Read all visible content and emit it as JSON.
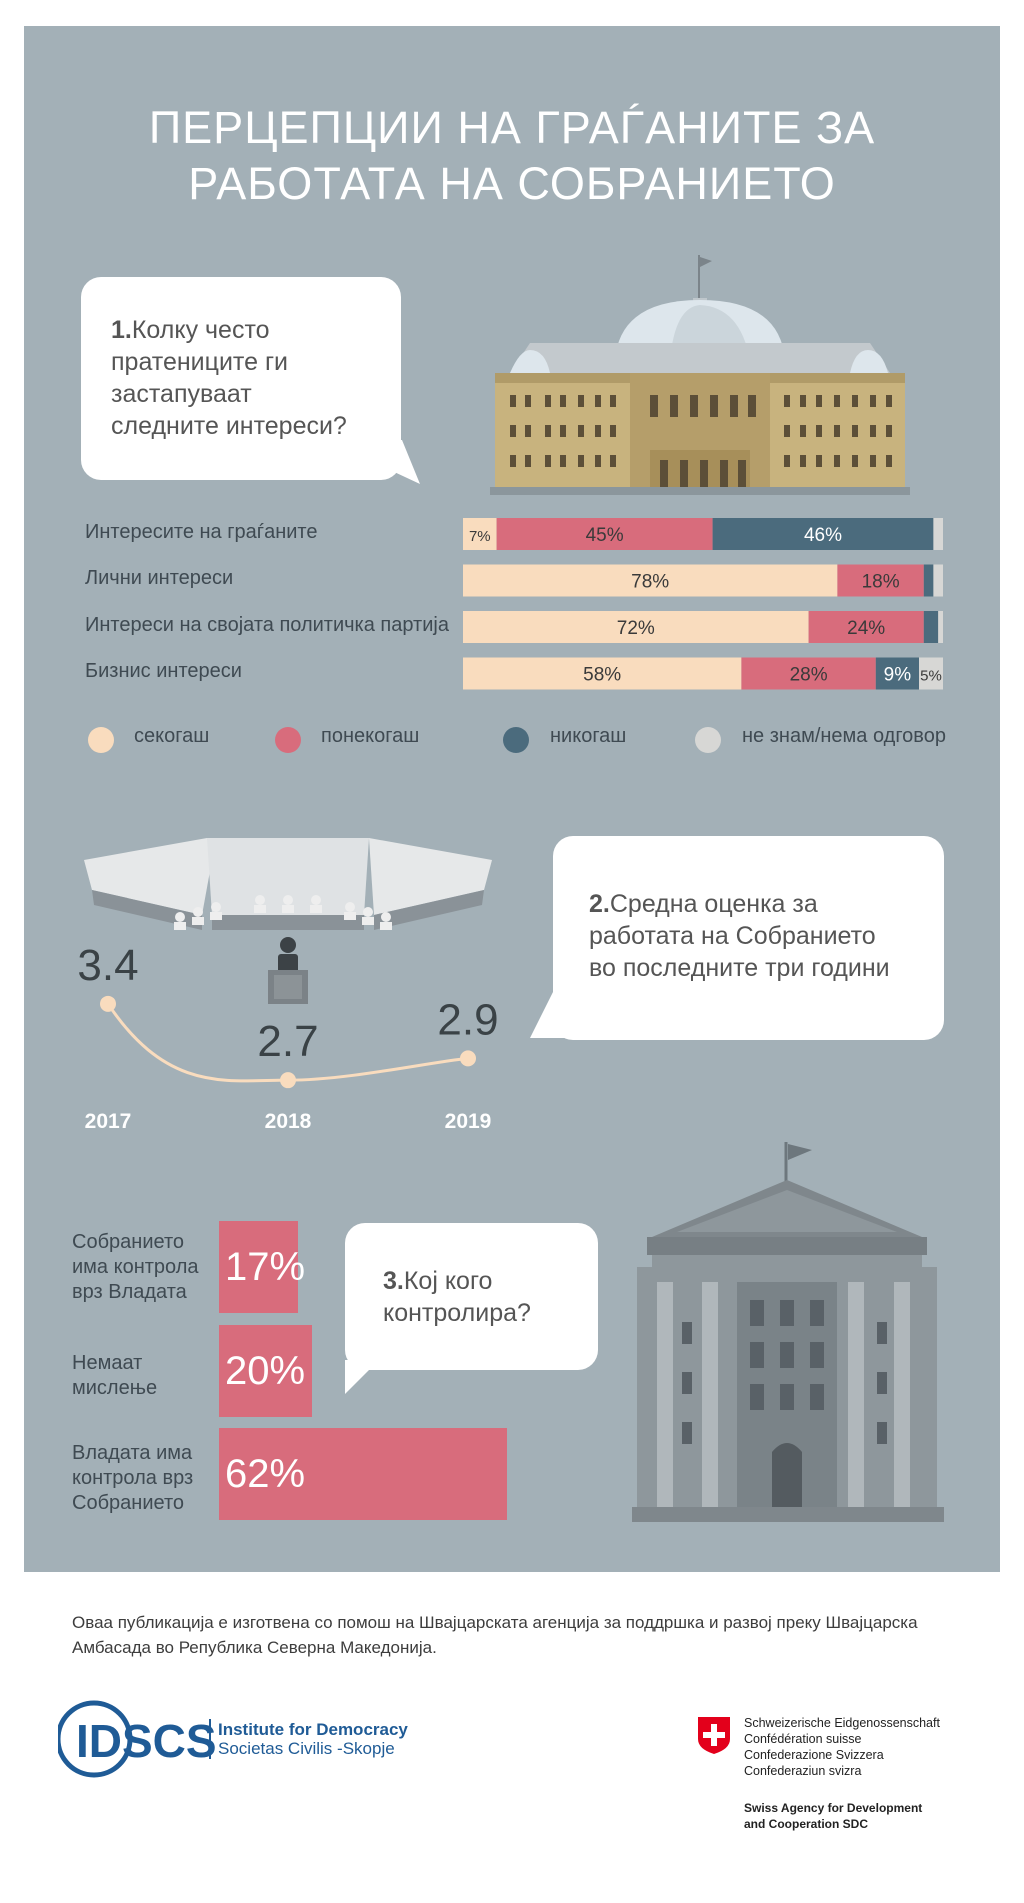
{
  "title_lines": [
    "ПЕРЦЕПЦИИ НА ГРАЃАНИТЕ ЗА",
    "РАБОТАТА НА СОБРАНИЕТО"
  ],
  "q1": {
    "number": "1.",
    "lines": [
      "Колку често",
      "пратениците ги",
      "застапуваат",
      "следните интереси?"
    ]
  },
  "q2": {
    "number": "2.",
    "lines": [
      "Средна оценка за",
      "работата на Собранието",
      "во последните три години"
    ]
  },
  "q3": {
    "number": "3.",
    "lines": [
      "Кој кого",
      "контролира?"
    ]
  },
  "colors": {
    "always": "#f9dcbe",
    "sometimes": "#d86c7c",
    "never": "#4b6b7d",
    "dontknow": "#d7d7d5",
    "panel": "#a3b0b7"
  },
  "legend": [
    "секогаш",
    "понекогаш",
    "никогаш",
    "не знам/нема одговор"
  ],
  "chart_data": [
    {
      "type": "bar",
      "stacked": true,
      "orientation": "horizontal",
      "categories": [
        "Интересите на граѓаните",
        "Лични интереси",
        "Интереси на својата политичка партија",
        "Бизнис интереси"
      ],
      "series": [
        {
          "name": "секогаш",
          "values": [
            7,
            78,
            72,
            58
          ],
          "labels": [
            "7%",
            "78%",
            "72%",
            "58%"
          ]
        },
        {
          "name": "понекогаш",
          "values": [
            45,
            18,
            24,
            28
          ],
          "labels": [
            "45%",
            "18%",
            "24%",
            "28%"
          ]
        },
        {
          "name": "никогаш",
          "values": [
            46,
            2,
            3,
            9
          ],
          "labels": [
            "46%",
            "",
            "",
            "9%"
          ]
        },
        {
          "name": "не знам/нема одговор",
          "values": [
            2,
            2,
            1,
            5
          ],
          "labels": [
            "",
            "",
            "",
            "5%"
          ]
        }
      ]
    },
    {
      "type": "line",
      "x": [
        "2017",
        "2018",
        "2019"
      ],
      "values": [
        3.4,
        2.7,
        2.9
      ],
      "labels": [
        "3.4",
        "2.7",
        "2.9"
      ]
    },
    {
      "type": "bar",
      "orientation": "horizontal",
      "categories": [
        "Собранието има контрола врз Владата",
        "Немаат мислење",
        "Владата има контрола врз Собранието"
      ],
      "category_lines": [
        [
          "Собранието",
          "има контрола",
          "врз Владата"
        ],
        [
          "Немаат",
          "мислење"
        ],
        [
          "Владата има",
          "контрола врз",
          "Собранието"
        ]
      ],
      "values": [
        17,
        20,
        62
      ],
      "labels": [
        "17%",
        "20%",
        "62%"
      ]
    }
  ],
  "footer": {
    "text": "Оваа публикација е изготвена со помош на Швајцарската агенција за поддршка и развој преку Швајцарска Амбасада во Република Северна Македонија.",
    "idscs_logo": "IDSCS",
    "idscs_line1": "Institute for Democracy",
    "idscs_line2": "Societas Civilis -Skopje",
    "swiss_lines": [
      "Schweizerische Eidgenossenschaft",
      "Confédération suisse",
      "Confederazione Svizzera",
      "Confederaziun svizra"
    ],
    "sdc_lines": [
      "Swiss Agency for Development",
      "and Cooperation SDC"
    ]
  }
}
